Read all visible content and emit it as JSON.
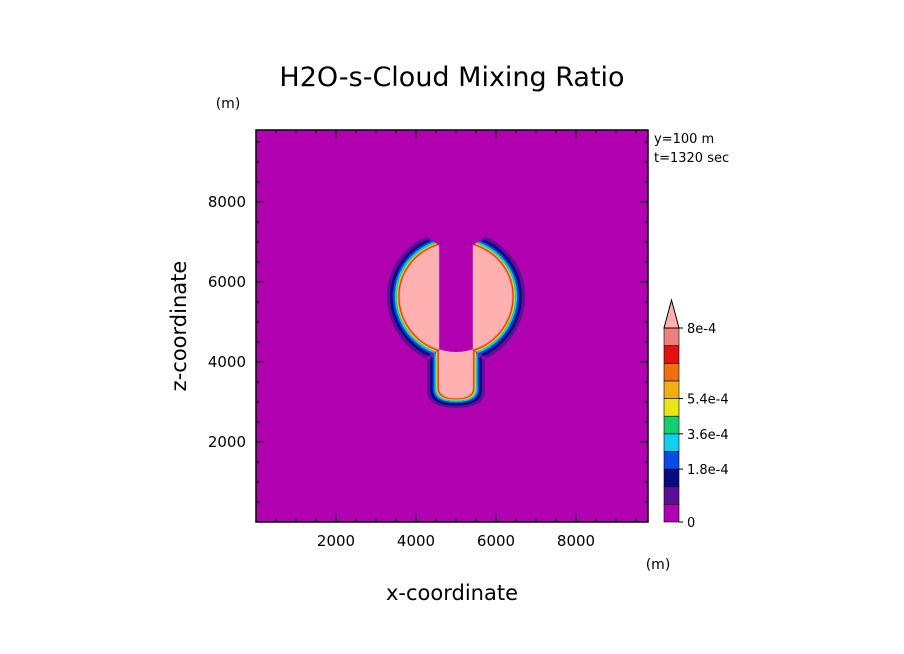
{
  "chart_data": {
    "type": "heatmap",
    "title": "H2O-s-Cloud Mixing Ratio",
    "xlabel": "x-coordinate",
    "ylabel": "z-coordinate",
    "x_unit": "(m)",
    "y_unit": "(m)",
    "annotations": [
      "y=100 m",
      "t=1320 sec"
    ],
    "xlim": [
      0,
      9800
    ],
    "ylim": [
      0,
      9800
    ],
    "x_ticks": [
      2000,
      4000,
      6000,
      8000
    ],
    "y_ticks": [
      2000,
      4000,
      6000,
      8000
    ],
    "x_tick_labels": [
      "2000",
      "4000",
      "6000",
      "8000"
    ],
    "y_tick_labels": [
      "2000",
      "4000",
      "6000",
      "8000"
    ],
    "colorbar": {
      "levels": [
        0,
        9e-05,
        0.00018,
        0.00027,
        0.00036,
        0.00045,
        0.00054,
        0.00063,
        0.00072,
        0.0008
      ],
      "labeled_levels": [
        0,
        0.00018,
        0.00036,
        0.00054,
        0.0008
      ],
      "labels": [
        "0",
        "1.8e-4",
        "3.6e-4",
        "5.4e-4",
        "8e-4"
      ],
      "colors": [
        "#b000b0",
        "#5a0f96",
        "#0a0a82",
        "#0a4ae6",
        "#10d0f0",
        "#10d070",
        "#e6e616",
        "#f0b010",
        "#f07010",
        "#e61010",
        "#f08080"
      ],
      "extend_max_color": "#ffb0b0"
    },
    "background_value_color": "#b000b0",
    "field_description_values": {
      "core_max": 0.0008
    }
  }
}
